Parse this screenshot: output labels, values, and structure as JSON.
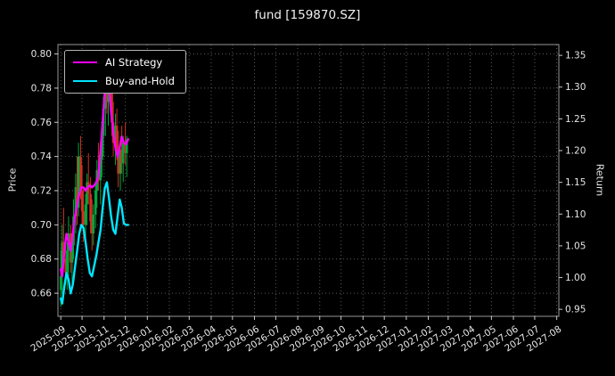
{
  "chart_data": {
    "type": "mixed_candlestick_line",
    "title": "fund [159870.SZ]",
    "ylabel_left": "Price",
    "ylabel_right": "Return",
    "grid": true,
    "legend_position": "upper left",
    "colors": {
      "background": "#000000",
      "text": "#e6e6e6",
      "grid": "#5a5a5a",
      "frame": "#c8c8c8",
      "candle_up": "#00a63c",
      "candle_down": "#cf3222"
    },
    "x_axis": {
      "start": "2025-08-28",
      "end": "2027-08-04",
      "tick_labels": [
        "2025-09",
        "2025-10",
        "2025-11",
        "2025-12",
        "2026-01",
        "2026-02",
        "2026-03",
        "2026-04",
        "2026-05",
        "2026-06",
        "2026-07",
        "2026-08",
        "2026-09",
        "2026-10",
        "2026-11",
        "2026-12",
        "2027-01",
        "2027-02",
        "2027-03",
        "2027-04",
        "2027-05",
        "2027-06",
        "2027-07",
        "2027-08"
      ]
    },
    "left_axis": {
      "range": [
        0.6465,
        0.8055
      ],
      "ticks": [
        0.66,
        0.68,
        0.7,
        0.72,
        0.74,
        0.76,
        0.78,
        0.8
      ]
    },
    "right_axis": {
      "range": [
        0.939,
        1.367
      ],
      "ticks": [
        0.95,
        1.0,
        1.05,
        1.1,
        1.15,
        1.2,
        1.25,
        1.3,
        1.35
      ]
    },
    "dates": [
      "2025-09-01",
      "2025-09-03",
      "2025-09-06",
      "2025-09-09",
      "2025-09-12",
      "2025-09-15",
      "2025-09-18",
      "2025-09-21",
      "2025-09-24",
      "2025-09-27",
      "2025-09-30",
      "2025-10-03",
      "2025-10-06",
      "2025-10-09",
      "2025-10-12",
      "2025-10-15",
      "2025-10-18",
      "2025-10-21",
      "2025-10-24",
      "2025-10-27",
      "2025-10-30",
      "2025-11-02",
      "2025-11-05",
      "2025-11-08",
      "2025-11-11",
      "2025-11-14",
      "2025-11-17",
      "2025-11-20",
      "2025-11-23",
      "2025-11-26",
      "2025-11-29",
      "2025-12-02",
      "2025-12-05"
    ],
    "series": [
      {
        "name": "AI Strategy",
        "color": "#ff00ff",
        "axis": "right",
        "values": [
          1.013,
          1.002,
          1.042,
          1.069,
          1.056,
          1.042,
          1.069,
          1.096,
          1.115,
          1.131,
          1.142,
          1.142,
          1.137,
          1.142,
          1.145,
          1.142,
          1.145,
          1.15,
          1.16,
          1.2,
          1.245,
          1.29,
          1.325,
          1.3,
          1.26,
          1.23,
          1.205,
          1.19,
          1.205,
          1.222,
          1.212,
          1.21,
          1.218
        ]
      },
      {
        "name": "Buy-and-Hold",
        "color": "#00e5ff",
        "axis": "right",
        "values": [
          0.967,
          0.959,
          0.986,
          1.007,
          0.997,
          0.975,
          0.989,
          1.016,
          1.042,
          1.069,
          1.083,
          1.078,
          1.056,
          1.029,
          1.007,
          1.002,
          1.018,
          1.034,
          1.055,
          1.075,
          1.11,
          1.14,
          1.15,
          1.125,
          1.096,
          1.075,
          1.069,
          1.096,
          1.123,
          1.11,
          1.085,
          1.083,
          1.083
        ]
      }
    ],
    "candles": [
      [
        "2025-09-01",
        0.662,
        0.685,
        0.652,
        0.67
      ],
      [
        "2025-09-03",
        0.67,
        0.7,
        0.66,
        0.69
      ],
      [
        "2025-09-05",
        0.69,
        0.71,
        0.675,
        0.68
      ],
      [
        "2025-09-08",
        0.68,
        0.695,
        0.665,
        0.672
      ],
      [
        "2025-09-10",
        0.672,
        0.69,
        0.662,
        0.685
      ],
      [
        "2025-09-12",
        0.685,
        0.705,
        0.67,
        0.695
      ],
      [
        "2025-09-15",
        0.695,
        0.7,
        0.672,
        0.678
      ],
      [
        "2025-09-17",
        0.678,
        0.692,
        0.665,
        0.688
      ],
      [
        "2025-09-19",
        0.688,
        0.715,
        0.68,
        0.705
      ],
      [
        "2025-09-22",
        0.705,
        0.73,
        0.695,
        0.722
      ],
      [
        "2025-09-24",
        0.722,
        0.74,
        0.7,
        0.71
      ],
      [
        "2025-09-26",
        0.71,
        0.748,
        0.705,
        0.74
      ],
      [
        "2025-09-29",
        0.74,
        0.752,
        0.715,
        0.72
      ],
      [
        "2025-10-01",
        0.72,
        0.735,
        0.7,
        0.708
      ],
      [
        "2025-10-03",
        0.708,
        0.722,
        0.69,
        0.7
      ],
      [
        "2025-10-06",
        0.7,
        0.718,
        0.688,
        0.712
      ],
      [
        "2025-10-08",
        0.712,
        0.73,
        0.7,
        0.725
      ],
      [
        "2025-10-10",
        0.725,
        0.742,
        0.712,
        0.718
      ],
      [
        "2025-10-13",
        0.718,
        0.728,
        0.695,
        0.702
      ],
      [
        "2025-10-15",
        0.702,
        0.715,
        0.685,
        0.695
      ],
      [
        "2025-10-17",
        0.695,
        0.712,
        0.688,
        0.706
      ],
      [
        "2025-10-20",
        0.706,
        0.725,
        0.698,
        0.72
      ],
      [
        "2025-10-22",
        0.72,
        0.738,
        0.71,
        0.732
      ],
      [
        "2025-10-24",
        0.732,
        0.748,
        0.72,
        0.726
      ],
      [
        "2025-10-27",
        0.726,
        0.742,
        0.712,
        0.738
      ],
      [
        "2025-10-29",
        0.738,
        0.76,
        0.728,
        0.752
      ],
      [
        "2025-10-31",
        0.752,
        0.775,
        0.74,
        0.768
      ],
      [
        "2025-11-03",
        0.768,
        0.79,
        0.752,
        0.782
      ],
      [
        "2025-11-05",
        0.782,
        0.798,
        0.765,
        0.772
      ],
      [
        "2025-11-07",
        0.772,
        0.795,
        0.758,
        0.788
      ],
      [
        "2025-11-10",
        0.788,
        0.8,
        0.77,
        0.778
      ],
      [
        "2025-11-12",
        0.778,
        0.788,
        0.752,
        0.76
      ],
      [
        "2025-11-14",
        0.76,
        0.772,
        0.74,
        0.748
      ],
      [
        "2025-11-17",
        0.748,
        0.765,
        0.735,
        0.758
      ],
      [
        "2025-11-19",
        0.758,
        0.768,
        0.738,
        0.742
      ],
      [
        "2025-11-21",
        0.742,
        0.755,
        0.722,
        0.73
      ],
      [
        "2025-11-24",
        0.73,
        0.748,
        0.72,
        0.744
      ],
      [
        "2025-11-26",
        0.744,
        0.758,
        0.73,
        0.736
      ],
      [
        "2025-11-28",
        0.736,
        0.752,
        0.725,
        0.748
      ],
      [
        "2025-12-01",
        0.748,
        0.76,
        0.735,
        0.742
      ],
      [
        "2025-12-03",
        0.742,
        0.752,
        0.728,
        0.75
      ]
    ]
  }
}
